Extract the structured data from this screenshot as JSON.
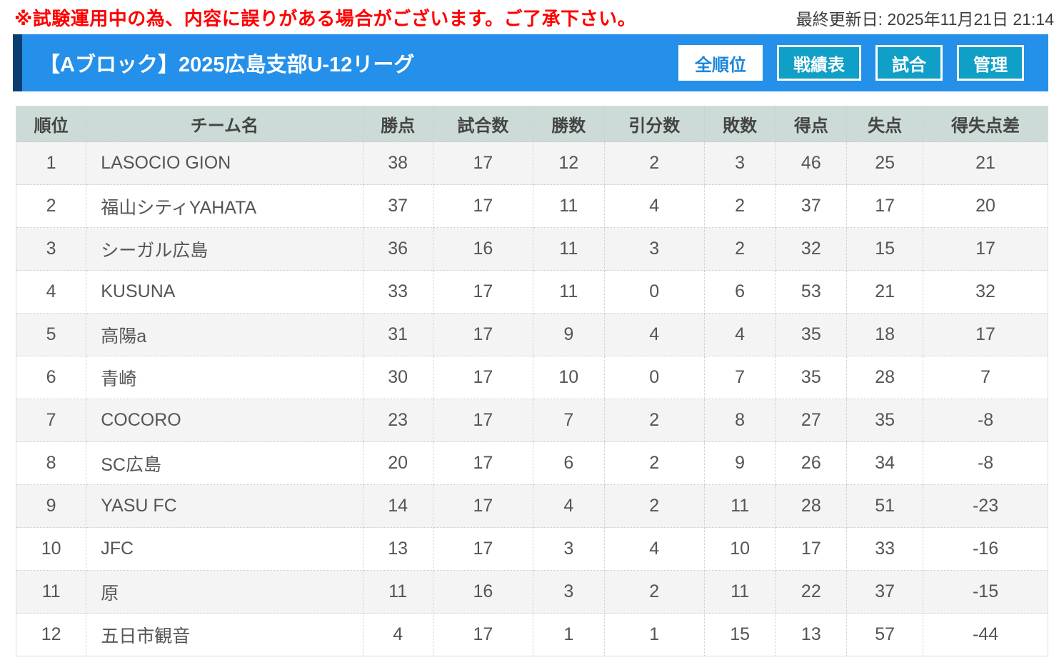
{
  "notice": {
    "text": "※試験運用中の為、内容に誤りがある場合がございます。ご了承下さい。"
  },
  "last_updated": "最終更新日: 2025年11月21日 21:14",
  "header": {
    "title": "【Aブロック】2025広島支部U-12リーグ",
    "tabs": [
      {
        "label": "全順位",
        "active": true
      },
      {
        "label": "戦績表",
        "active": false
      },
      {
        "label": "試合",
        "active": false
      },
      {
        "label": "管理",
        "active": false
      }
    ]
  },
  "colors": {
    "notice_text": "#ff0000",
    "title_bar": "#2590e9",
    "title_bar_accent": "#0c3e72",
    "tab_inactive": "#109fc7",
    "tab_active_text": "#1a86da",
    "table_header_bg": "#ccdbd7",
    "row_alt_bg": "#f4f4f4"
  },
  "table": {
    "columns": [
      "順位",
      "チーム名",
      "勝点",
      "試合数",
      "勝数",
      "引分数",
      "敗数",
      "得点",
      "失点",
      "得失点差"
    ],
    "rows": [
      [
        "1",
        "LASOCIO GION",
        "38",
        "17",
        "12",
        "2",
        "3",
        "46",
        "25",
        "21"
      ],
      [
        "2",
        "福山シティYAHATA",
        "37",
        "17",
        "11",
        "4",
        "2",
        "37",
        "17",
        "20"
      ],
      [
        "3",
        "シーガル広島",
        "36",
        "16",
        "11",
        "3",
        "2",
        "32",
        "15",
        "17"
      ],
      [
        "4",
        "KUSUNA",
        "33",
        "17",
        "11",
        "0",
        "6",
        "53",
        "21",
        "32"
      ],
      [
        "5",
        "高陽a",
        "31",
        "17",
        "9",
        "4",
        "4",
        "35",
        "18",
        "17"
      ],
      [
        "6",
        "青崎",
        "30",
        "17",
        "10",
        "0",
        "7",
        "35",
        "28",
        "7"
      ],
      [
        "7",
        "COCORO",
        "23",
        "17",
        "7",
        "2",
        "8",
        "27",
        "35",
        "-8"
      ],
      [
        "8",
        "SC広島",
        "20",
        "17",
        "6",
        "2",
        "9",
        "26",
        "34",
        "-8"
      ],
      [
        "9",
        "YASU FC",
        "14",
        "17",
        "4",
        "2",
        "11",
        "28",
        "51",
        "-23"
      ],
      [
        "10",
        "JFC",
        "13",
        "17",
        "3",
        "4",
        "10",
        "17",
        "33",
        "-16"
      ],
      [
        "11",
        "原",
        "11",
        "16",
        "3",
        "2",
        "11",
        "22",
        "37",
        "-15"
      ],
      [
        "12",
        "五日市観音",
        "4",
        "17",
        "1",
        "1",
        "15",
        "13",
        "57",
        "-44"
      ]
    ]
  }
}
